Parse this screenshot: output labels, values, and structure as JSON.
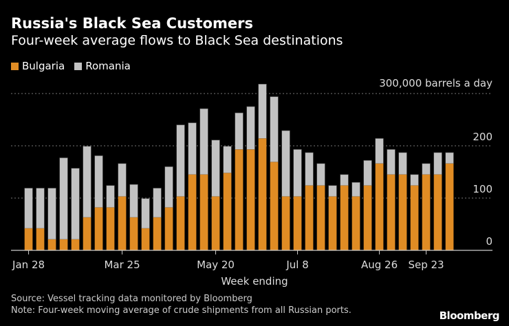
{
  "title": "Russia's Black Sea Customers",
  "subtitle": "Four-week average flows to Black Sea destinations",
  "source": "Source: Vessel tracking data monitored by Bloomberg",
  "note": "Note: Four-week moving average of crude shipments from all Russian ports.",
  "logo": "Bloomberg",
  "chart_data": {
    "type": "bar",
    "stacked": true,
    "xlabel": "Week ending",
    "unit_label": "300,000 barrels a day",
    "ylim": [
      0,
      320
    ],
    "y_ticks": [
      "0",
      "100",
      "200"
    ],
    "grid": true,
    "legend_position": "top-left",
    "x_tick_labels": [
      {
        "label": "Jan 28",
        "index": 0
      },
      {
        "label": "Mar 25",
        "index": 8
      },
      {
        "label": "May 20",
        "index": 16
      },
      {
        "label": "Jul 8",
        "index": 23
      },
      {
        "label": "Aug 26",
        "index": 30
      },
      {
        "label": "Sep 23",
        "index": 34
      }
    ],
    "categories": [
      "Jan 28",
      "Feb 4",
      "Feb 11",
      "Feb 18",
      "Feb 25",
      "Mar 4",
      "Mar 11",
      "Mar 18",
      "Mar 25",
      "Apr 1",
      "Apr 8",
      "Apr 15",
      "Apr 22",
      "Apr 29",
      "May 6",
      "May 13",
      "May 20",
      "May 27",
      "Jun 3",
      "Jun 10",
      "Jun 17",
      "Jun 24",
      "Jul 1",
      "Jul 8",
      "Jul 15",
      "Jul 22",
      "Jul 29",
      "Aug 5",
      "Aug 12",
      "Aug 19",
      "Aug 26",
      "Sep 2",
      "Sep 9",
      "Sep 16",
      "Sep 23",
      "Sep 30",
      "Oct 7"
    ],
    "series": [
      {
        "name": "Bulgaria",
        "color": "#e08c24",
        "values": [
          42,
          42,
          21,
          21,
          21,
          63,
          82,
          82,
          103,
          63,
          42,
          63,
          82,
          103,
          145,
          145,
          103,
          148,
          193,
          193,
          214,
          169,
          103,
          103,
          124,
          124,
          103,
          124,
          103,
          124,
          166,
          145,
          145,
          124,
          145,
          145,
          166
        ]
      },
      {
        "name": "Romania",
        "color": "#c2c2c2",
        "values": [
          77,
          77,
          98,
          156,
          136,
          136,
          99,
          42,
          63,
          63,
          57,
          56,
          78,
          137,
          99,
          126,
          108,
          51,
          70,
          82,
          104,
          125,
          126,
          90,
          63,
          42,
          21,
          21,
          27,
          48,
          48,
          48,
          42,
          21,
          21,
          42,
          21
        ]
      }
    ]
  }
}
